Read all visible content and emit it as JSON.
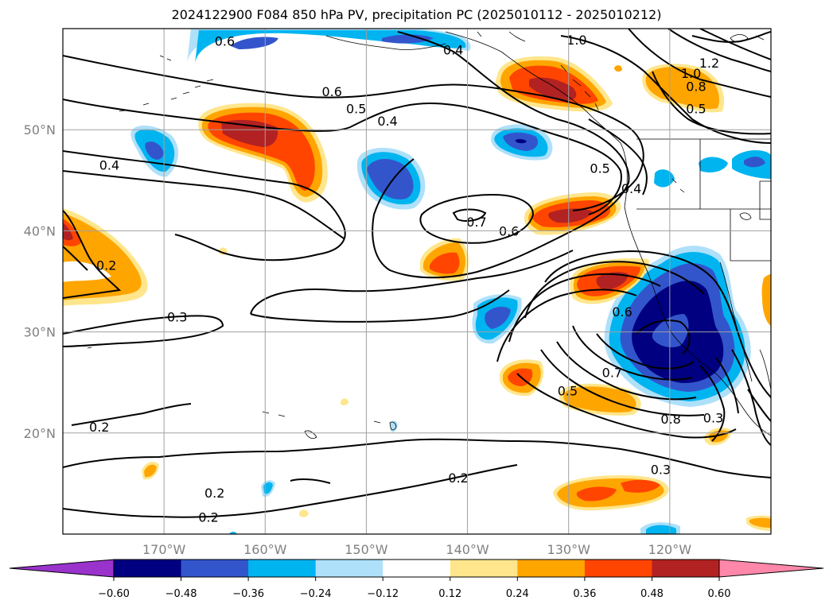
{
  "chart_data": {
    "type": "contour_map",
    "title": "2024122900 F084 850 hPa PV, precipitation PC (2025010112 - 2025010212)",
    "x_ticks": [
      "170°W",
      "160°W",
      "150°W",
      "140°W",
      "130°W",
      "120°W"
    ],
    "y_ticks": [
      "50°N",
      "40°N",
      "30°N",
      "20°N"
    ],
    "lon_range": [
      -180,
      -110
    ],
    "lat_range": [
      10,
      60
    ],
    "grid": true,
    "contour_variable": "850 hPa PV",
    "contour_levels_labeled": [
      "0.2",
      "0.3",
      "0.4",
      "0.5",
      "0.6",
      "0.7",
      "0.8",
      "1.0",
      "1.2"
    ],
    "colorbar": {
      "orientation": "horizontal",
      "extend": "both",
      "boundaries": [
        "-0.60",
        "-0.48",
        "-0.36",
        "-0.24",
        "-0.12",
        "0.12",
        "0.24",
        "0.36",
        "0.48",
        "0.60"
      ],
      "colors": [
        "#9933cc",
        "#000080",
        "#3355cc",
        "#00b4f0",
        "#aee0fa",
        "#ffffff",
        "#ffe68c",
        "#ffa500",
        "#ff4500",
        "#b22222",
        "#ff88aa"
      ]
    },
    "contour_labels": [
      {
        "text": "1.0",
        "lon": -129.2,
        "lat": 58.9
      },
      {
        "text": "1.2",
        "lon": -116.1,
        "lat": 56.6
      },
      {
        "text": "1.0",
        "lon": -117.9,
        "lat": 55.6
      },
      {
        "text": "0.8",
        "lon": -117.4,
        "lat": 54.3
      },
      {
        "text": "0.5",
        "lon": -117.4,
        "lat": 52.1
      },
      {
        "text": "0.4",
        "lon": -141.4,
        "lat": 57.9
      },
      {
        "text": "0.6",
        "lon": -164.0,
        "lat": 58.8
      },
      {
        "text": "0.6",
        "lon": -153.4,
        "lat": 53.8
      },
      {
        "text": "0.5",
        "lon": -151.0,
        "lat": 52.1
      },
      {
        "text": "0.4",
        "lon": -147.9,
        "lat": 50.9
      },
      {
        "text": "0.4",
        "lon": -175.4,
        "lat": 46.5
      },
      {
        "text": "0.5",
        "lon": -126.9,
        "lat": 46.2
      },
      {
        "text": "0.4",
        "lon": -123.8,
        "lat": 44.2
      },
      {
        "text": "0.7",
        "lon": -139.1,
        "lat": 40.9
      },
      {
        "text": "0.6",
        "lon": -135.9,
        "lat": 40.0
      },
      {
        "text": "0.2",
        "lon": -175.7,
        "lat": 36.6
      },
      {
        "text": "0.3",
        "lon": -168.7,
        "lat": 31.5
      },
      {
        "text": "0.6",
        "lon": -124.7,
        "lat": 32.0
      },
      {
        "text": "0.7",
        "lon": -125.7,
        "lat": 26.0
      },
      {
        "text": "0.5",
        "lon": -130.1,
        "lat": 24.2
      },
      {
        "text": "0.8",
        "lon": -119.9,
        "lat": 21.4
      },
      {
        "text": "0.3",
        "lon": -115.7,
        "lat": 21.5
      },
      {
        "text": "0.3",
        "lon": -120.9,
        "lat": 16.4
      },
      {
        "text": "0.2",
        "lon": -176.4,
        "lat": 20.6
      },
      {
        "text": "0.2",
        "lon": -140.9,
        "lat": 15.6
      },
      {
        "text": "0.2",
        "lon": -165.6,
        "lat": 11.7
      },
      {
        "text": "0.2",
        "lon": -165.0,
        "lat": 14.1
      }
    ]
  }
}
